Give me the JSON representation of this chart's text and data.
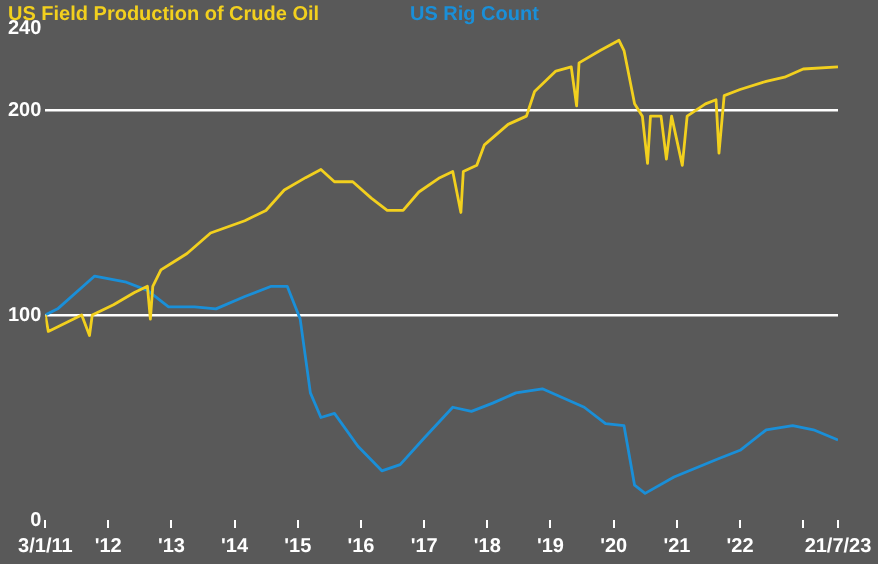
{
  "chart_data": {
    "type": "line",
    "xlim": [
      "2011-01-03",
      "2023-07-21"
    ],
    "xticks": [
      {
        "value": "2011-01-03",
        "label": "3/1/11"
      },
      {
        "value": "2012-01-01",
        "label": "'12"
      },
      {
        "value": "2013-01-01",
        "label": "'13"
      },
      {
        "value": "2014-01-01",
        "label": "'14"
      },
      {
        "value": "2015-01-01",
        "label": "'15"
      },
      {
        "value": "2016-01-01",
        "label": "'16"
      },
      {
        "value": "2017-01-01",
        "label": "'17"
      },
      {
        "value": "2018-01-01",
        "label": "'18"
      },
      {
        "value": "2019-01-01",
        "label": "'19"
      },
      {
        "value": "2020-01-01",
        "label": "'20"
      },
      {
        "value": "2021-01-01",
        "label": "'21"
      },
      {
        "value": "2022-01-01",
        "label": "'22"
      },
      {
        "value": "2023-01-01",
        "label": null
      },
      {
        "value": "2023-07-21",
        "label": "21/7/23"
      }
    ],
    "ylim": [
      0,
      240
    ],
    "yticks": [
      0,
      100,
      200,
      240
    ],
    "grid": "y",
    "legend": "top",
    "marker": "none",
    "series": [
      {
        "name": "US Field Production of Crude Oil",
        "color": "#f2d01e",
        "x": [
          "2011-01-03",
          "2011-01-20",
          "2011-08-01",
          "2011-09-15",
          "2011-10-01",
          "2012-02-01",
          "2012-06-01",
          "2012-08-15",
          "2012-09-01",
          "2012-09-15",
          "2012-11-01",
          "2013-01-15",
          "2013-04-01",
          "2013-08-15",
          "2014-03-01",
          "2014-07-01",
          "2014-10-15",
          "2015-02-15",
          "2015-05-15",
          "2015-08-01",
          "2015-11-15",
          "2016-03-01",
          "2016-06-01",
          "2016-09-01",
          "2016-12-01",
          "2017-04-01",
          "2017-06-15",
          "2017-08-01",
          "2017-08-15",
          "2017-11-01",
          "2017-12-15",
          "2018-05-01",
          "2018-08-15",
          "2018-10-01",
          "2019-02-01",
          "2019-05-01",
          "2019-06-01",
          "2019-06-15",
          "2019-10-15",
          "2020-02-01",
          "2020-03-01",
          "2020-05-01",
          "2020-06-15",
          "2020-07-15",
          "2020-08-01",
          "2020-10-01",
          "2020-11-01",
          "2020-12-01",
          "2021-02-01",
          "2021-03-01",
          "2021-06-15",
          "2021-08-15",
          "2021-09-01",
          "2021-10-01",
          "2022-01-01",
          "2022-06-01",
          "2022-09-15",
          "2023-01-01",
          "2023-07-21"
        ],
        "values": [
          100,
          92,
          100,
          90,
          100,
          105,
          111,
          114,
          98,
          114,
          122,
          126,
          130,
          140,
          146,
          151,
          161,
          167,
          171,
          165,
          165,
          157,
          151,
          151,
          160,
          167,
          170,
          150,
          170,
          173,
          183,
          193,
          197,
          209,
          219,
          221,
          202,
          223,
          229,
          234,
          229,
          203,
          197,
          174,
          197,
          197,
          176,
          197,
          173,
          197,
          203,
          205,
          179,
          207,
          210,
          214,
          216,
          220,
          221
        ]
      },
      {
        "name": "US Rig Count",
        "color": "#1a8fd8",
        "x": [
          "2011-01-03",
          "2011-03-15",
          "2011-10-15",
          "2012-04-15",
          "2012-08-15",
          "2012-12-15",
          "2013-05-15",
          "2013-09-15",
          "2014-03-01",
          "2014-08-01",
          "2014-11-01",
          "2015-01-15",
          "2015-03-15",
          "2015-05-15",
          "2015-08-01",
          "2015-12-15",
          "2016-05-01",
          "2016-08-15",
          "2017-01-01",
          "2017-06-15",
          "2017-10-01",
          "2018-02-01",
          "2018-06-15",
          "2018-11-15",
          "2019-07-15",
          "2019-11-15",
          "2020-03-01",
          "2020-05-01",
          "2020-07-01",
          "2020-12-15",
          "2021-09-01",
          "2022-01-01",
          "2022-06-01",
          "2022-11-01",
          "2023-03-01",
          "2023-07-21"
        ],
        "values": [
          100,
          103,
          119,
          116,
          112,
          104,
          104,
          103,
          109,
          114,
          114,
          98,
          62,
          50,
          52,
          36,
          24,
          27,
          40,
          55,
          53,
          57,
          62,
          64,
          55,
          47,
          46,
          17,
          13,
          21,
          30,
          34,
          44,
          46,
          44,
          39
        ]
      }
    ]
  }
}
